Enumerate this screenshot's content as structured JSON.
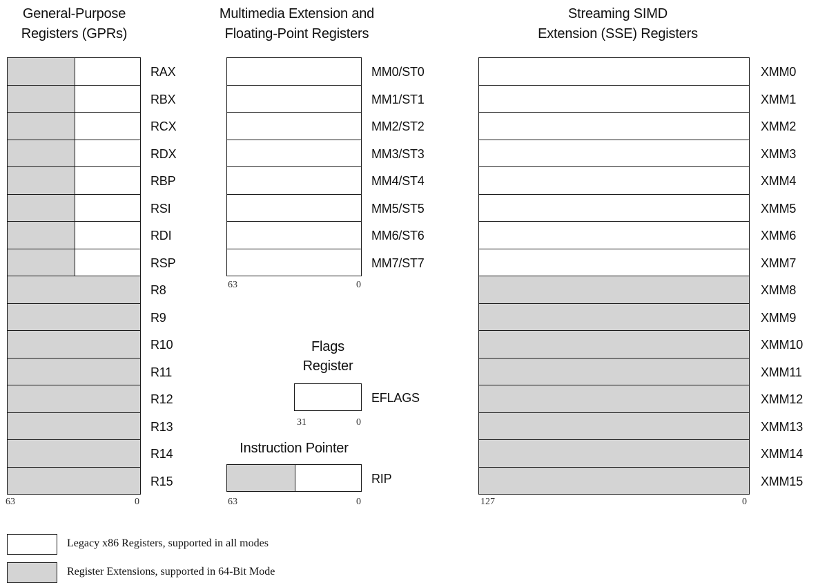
{
  "gpr": {
    "title_line1": "General-Purpose",
    "title_line2": "Registers (GPRs)",
    "registers": [
      "RAX",
      "RBX",
      "RCX",
      "RDX",
      "RBP",
      "RSI",
      "RDI",
      "RSP",
      "R8",
      "R9",
      "R10",
      "R11",
      "R12",
      "R13",
      "R14",
      "R15"
    ],
    "bit_high": "63",
    "bit_low": "0"
  },
  "mmx": {
    "title_line1": "Multimedia Extension and",
    "title_line2": "Floating-Point Registers",
    "registers": [
      "MM0/ST0",
      "MM1/ST1",
      "MM2/ST2",
      "MM3/ST3",
      "MM4/ST4",
      "MM5/ST5",
      "MM6/ST6",
      "MM7/ST7"
    ],
    "bit_high": "63",
    "bit_low": "0"
  },
  "flags": {
    "title_line1": "Flags",
    "title_line2": "Register",
    "register": "EFLAGS",
    "bit_high": "31",
    "bit_low": "0"
  },
  "rip": {
    "title": "Instruction Pointer",
    "register": "RIP",
    "bit_high": "63",
    "bit_low": "0"
  },
  "sse": {
    "title_line1": "Streaming SIMD",
    "title_line2": "Extension (SSE) Registers",
    "registers": [
      "XMM0",
      "XMM1",
      "XMM2",
      "XMM3",
      "XMM4",
      "XMM5",
      "XMM6",
      "XMM7",
      "XMM8",
      "XMM9",
      "XMM10",
      "XMM11",
      "XMM12",
      "XMM13",
      "XMM14",
      "XMM15"
    ],
    "bit_high": "127",
    "bit_low": "0"
  },
  "legend": {
    "legacy": "Legacy x86 Registers, supported in all modes",
    "extensions": "Register Extensions, supported in 64-Bit Mode"
  },
  "colors": {
    "legacy_fill": "#ffffff",
    "extension_fill": "#d4d4d4",
    "outline": "#1a1a1a"
  }
}
